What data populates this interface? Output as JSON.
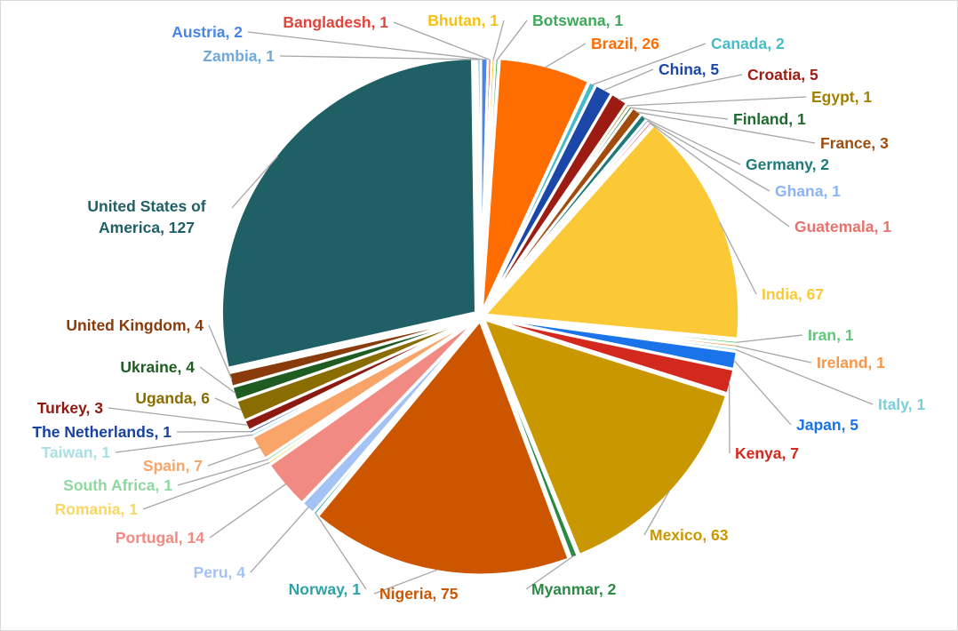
{
  "chart_data": {
    "type": "pie",
    "title": "",
    "slices": [
      {
        "label": "Austria",
        "value": 2,
        "color": "#4a86e8",
        "text": "Austria, 2"
      },
      {
        "label": "Bangladesh",
        "value": 1,
        "color": "#e0443a",
        "text": "Bangladesh, 1"
      },
      {
        "label": "Bhutan",
        "value": 1,
        "color": "#f6c20f",
        "text": "Bhutan, 1"
      },
      {
        "label": "Botswana",
        "value": 1,
        "color": "#3fa85a",
        "text": "Botswana, 1"
      },
      {
        "label": "Brazil",
        "value": 26,
        "color": "#ff6d01",
        "text": "Brazil, 26"
      },
      {
        "label": "Canada",
        "value": 2,
        "color": "#46bdc6",
        "text": "Canada, 2"
      },
      {
        "label": "China",
        "value": 5,
        "color": "#1a47a8",
        "text": "China, 5"
      },
      {
        "label": "Croatia",
        "value": 5,
        "color": "#9c1b12",
        "text": "Croatia, 5"
      },
      {
        "label": "Egypt",
        "value": 1,
        "color": "#a28000",
        "text": "Egypt, 1"
      },
      {
        "label": "Finland",
        "value": 1,
        "color": "#1e6b2d",
        "text": "Finland, 1"
      },
      {
        "label": "France",
        "value": 3,
        "color": "#a14b0c",
        "text": "France, 3"
      },
      {
        "label": "Germany",
        "value": 2,
        "color": "#1f7a7a",
        "text": "Germany, 2"
      },
      {
        "label": "Ghana",
        "value": 1,
        "color": "#8ab4f8",
        "text": "Ghana, 1"
      },
      {
        "label": "Guatemala",
        "value": 1,
        "color": "#e8726b",
        "text": "Guatemala, 1"
      },
      {
        "label": "India",
        "value": 67,
        "color": "#fbc935",
        "text": "India, 67"
      },
      {
        "label": "Iran",
        "value": 1,
        "color": "#5ec97a",
        "text": "Iran, 1"
      },
      {
        "label": "Ireland",
        "value": 1,
        "color": "#f79646",
        "text": "Ireland, 1"
      },
      {
        "label": "Italy",
        "value": 1,
        "color": "#79d0d8",
        "text": "Italy, 1"
      },
      {
        "label": "Japan",
        "value": 5,
        "color": "#1a73e8",
        "text": "Japan, 5"
      },
      {
        "label": "Kenya",
        "value": 7,
        "color": "#d2281e",
        "text": "Kenya, 7"
      },
      {
        "label": "Mexico",
        "value": 63,
        "color": "#c99700",
        "text": "Mexico, 63"
      },
      {
        "label": "Myanmar",
        "value": 2,
        "color": "#2a8a45",
        "text": "Myanmar, 2"
      },
      {
        "label": "Nigeria",
        "value": 75,
        "color": "#cc5500",
        "text": "Nigeria, 75"
      },
      {
        "label": "Norway",
        "value": 1,
        "color": "#2ba3a8",
        "text": "Norway, 1"
      },
      {
        "label": "Peru",
        "value": 4,
        "color": "#a4c2f4",
        "text": "Peru, 4"
      },
      {
        "label": "Portugal",
        "value": 14,
        "color": "#f08a82",
        "text": "Portugal, 14"
      },
      {
        "label": "Romania",
        "value": 1,
        "color": "#fbd660",
        "text": "Romania, 1"
      },
      {
        "label": "South Africa",
        "value": 1,
        "color": "#8ed8a0",
        "text": "South Africa, 1"
      },
      {
        "label": "Spain",
        "value": 7,
        "color": "#f9a56a",
        "text": "Spain, 7"
      },
      {
        "label": "Taiwan",
        "value": 1,
        "color": "#a8e0e4",
        "text": "Taiwan, 1"
      },
      {
        "label": "The Netherlands",
        "value": 1,
        "color": "#1742a0",
        "text": "The Netherlands, 1"
      },
      {
        "label": "Turkey",
        "value": 3,
        "color": "#8c1a10",
        "text": "Turkey, 3"
      },
      {
        "label": "Uganda",
        "value": 6,
        "color": "#8a6d00",
        "text": "Uganda, 6"
      },
      {
        "label": "Ukraine",
        "value": 4,
        "color": "#1e5c22",
        "text": "Ukraine, 4"
      },
      {
        "label": "United Kingdom",
        "value": 4,
        "color": "#8a3b0b",
        "text": "United Kingdom, 4"
      },
      {
        "label": "United States of America",
        "value": 127,
        "color": "#1f5f66",
        "text": "United States of\nAmerica, 127"
      },
      {
        "label": "Zambia",
        "value": 1,
        "color": "#6fa8dc",
        "text": "Zambia, 1"
      }
    ]
  }
}
